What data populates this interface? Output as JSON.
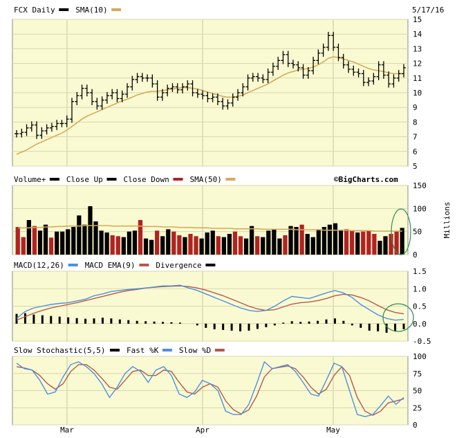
{
  "chart_data": [
    {
      "type": "ohlc",
      "title": "FCX Daily",
      "legend": [
        {
          "label": "FCX Daily",
          "color": "#000000"
        },
        {
          "label": "SMA(10)",
          "color": "#d4aa5a"
        }
      ],
      "date": "5/17/16",
      "ylim": [
        5,
        15
      ],
      "yticks": [
        "5",
        "6",
        "7",
        "8",
        "9",
        "10",
        "11",
        "12",
        "13",
        "14",
        "15"
      ],
      "xticks": [
        "Mar",
        "Apr",
        "May"
      ],
      "closes": [
        7.2,
        7.3,
        7.6,
        7.8,
        7.1,
        7.4,
        7.6,
        7.7,
        7.9,
        7.9,
        8.2,
        9.4,
        9.8,
        10.3,
        10.0,
        9.4,
        9.1,
        9.5,
        9.8,
        10.0,
        9.6,
        9.9,
        10.4,
        10.9,
        11.1,
        11.0,
        11.0,
        10.6,
        9.7,
        10.0,
        10.3,
        10.4,
        10.2,
        10.4,
        10.6,
        10.0,
        9.9,
        9.8,
        9.6,
        9.7,
        9.4,
        9.1,
        9.3,
        9.7,
        10.0,
        10.4,
        11.0,
        11.1,
        11.0,
        10.9,
        11.4,
        11.8,
        12.2,
        12.6,
        12.0,
        11.9,
        11.7,
        11.2,
        11.5,
        12.2,
        12.7,
        13.1,
        13.9,
        13.1,
        12.4,
        11.9,
        11.6,
        11.4,
        11.3,
        10.7,
        10.8,
        11.1,
        11.9,
        11.2,
        10.6,
        11.0,
        11.3,
        11.7
      ],
      "sma10": [
        5.8,
        5.95,
        6.1,
        6.3,
        6.5,
        6.65,
        6.8,
        6.95,
        7.1,
        7.25,
        7.45,
        7.7,
        7.95,
        8.2,
        8.4,
        8.55,
        8.7,
        8.85,
        9.0,
        9.15,
        9.3,
        9.45,
        9.55,
        9.7,
        9.85,
        9.95,
        10.05,
        10.1,
        10.1,
        10.15,
        10.2,
        10.25,
        10.3,
        10.35,
        10.35,
        10.3,
        10.25,
        10.15,
        10.05,
        9.95,
        9.85,
        9.75,
        9.7,
        9.7,
        9.75,
        9.85,
        10.0,
        10.15,
        10.3,
        10.45,
        10.6,
        10.8,
        11.0,
        11.2,
        11.35,
        11.45,
        11.55,
        11.6,
        11.65,
        11.75,
        11.9,
        12.1,
        12.35,
        12.45,
        12.4,
        12.3,
        12.2,
        12.1,
        11.95,
        11.8,
        11.65,
        11.55,
        11.5,
        11.45,
        11.35,
        11.3,
        11.3,
        11.3
      ]
    },
    {
      "type": "bar",
      "title": "Volume+",
      "legend": [
        {
          "label": "Volume+",
          "color": "#000000"
        },
        {
          "label": "Close Up",
          "color": "#000000"
        },
        {
          "label": "Close Down",
          "color": "#b22222"
        },
        {
          "label": "SMA(50)",
          "color": "#d4aa5a"
        }
      ],
      "source": "©BigCharts.com",
      "ylabel": "Millions",
      "ylim": [
        0,
        150
      ],
      "yticks": [
        "0",
        "50",
        "100",
        "150"
      ],
      "values": [
        60,
        38,
        75,
        62,
        52,
        65,
        37,
        50,
        50,
        55,
        60,
        85,
        65,
        105,
        72,
        52,
        48,
        42,
        40,
        38,
        50,
        52,
        75,
        35,
        32,
        52,
        40,
        55,
        50,
        42,
        38,
        45,
        40,
        35,
        48,
        52,
        40,
        38,
        45,
        50,
        40,
        35,
        62,
        40,
        38,
        52,
        55,
        35,
        42,
        62,
        60,
        65,
        45,
        38,
        55,
        60,
        65,
        68,
        52,
        55,
        52,
        48,
        50,
        52,
        45,
        30,
        40,
        45,
        50,
        58
      ],
      "up": [
        false,
        false,
        true,
        false,
        true,
        true,
        false,
        true,
        true,
        true,
        true,
        true,
        true,
        true,
        true,
        true,
        true,
        false,
        false,
        true,
        true,
        true,
        false,
        true,
        true,
        false,
        true,
        true,
        false,
        false,
        true,
        false,
        false,
        true,
        true,
        true,
        false,
        true,
        true,
        false,
        false,
        true,
        true,
        false,
        true,
        true,
        true,
        true,
        false,
        true,
        true,
        false,
        true,
        true,
        true,
        true,
        true,
        true,
        true,
        false,
        false,
        true,
        false,
        false,
        false,
        true,
        true,
        false,
        false,
        true
      ],
      "sma50": [
        58,
        58,
        58,
        59,
        59,
        60,
        60,
        61,
        61,
        62,
        62,
        62,
        63,
        63,
        63,
        63,
        63,
        62,
        62,
        62,
        62,
        62,
        62,
        61,
        61,
        61,
        60,
        60,
        60,
        59,
        59,
        59,
        58,
        58,
        58,
        57,
        57,
        57,
        57,
        56,
        56,
        56,
        56,
        56,
        55,
        55,
        55,
        55,
        55,
        55,
        54,
        54,
        54,
        54,
        54,
        53,
        53,
        53,
        53,
        53,
        52,
        52,
        52,
        52,
        51,
        51,
        51,
        51,
        51,
        51
      ]
    },
    {
      "type": "line",
      "title": "MACD(12,26)",
      "legend": [
        {
          "label": "MACD(12,26)",
          "color": "#4a90e2"
        },
        {
          "label": "MACD EMA(9)",
          "color": "#b5584a"
        },
        {
          "label": "Divergence",
          "color": "#000000"
        }
      ],
      "ylim": [
        -0.5,
        1.5
      ],
      "yticks": [
        "-0.5",
        "0.0",
        "0.5",
        "1.0",
        "1.5"
      ],
      "macd": [
        0.15,
        0.35,
        0.45,
        0.5,
        0.55,
        0.58,
        0.6,
        0.65,
        0.7,
        0.8,
        0.85,
        0.92,
        0.95,
        0.98,
        1.0,
        1.02,
        1.05,
        1.08,
        1.08,
        1.1,
        1.02,
        0.95,
        0.85,
        0.75,
        0.65,
        0.55,
        0.45,
        0.38,
        0.35,
        0.38,
        0.5,
        0.65,
        0.78,
        0.75,
        0.72,
        0.8,
        0.88,
        0.95,
        0.88,
        0.75,
        0.55,
        0.4,
        0.25,
        0.15,
        0.1,
        0.12
      ],
      "signal": [
        0.1,
        0.2,
        0.3,
        0.38,
        0.45,
        0.5,
        0.55,
        0.6,
        0.66,
        0.72,
        0.78,
        0.84,
        0.9,
        0.95,
        0.98,
        1.02,
        1.04,
        1.06,
        1.07,
        1.08,
        1.06,
        1.02,
        0.96,
        0.88,
        0.8,
        0.7,
        0.6,
        0.5,
        0.42,
        0.38,
        0.4,
        0.48,
        0.56,
        0.6,
        0.62,
        0.66,
        0.72,
        0.8,
        0.84,
        0.82,
        0.75,
        0.65,
        0.52,
        0.4,
        0.32,
        0.28
      ],
      "divergence": [
        0.28,
        0.3,
        0.26,
        0.24,
        0.22,
        0.2,
        0.18,
        0.16,
        0.14,
        0.15,
        0.17,
        0.15,
        0.12,
        0.1,
        0.08,
        0.07,
        0.06,
        0.05,
        0.04,
        0.03,
        0.0,
        -0.05,
        -0.12,
        -0.16,
        -0.18,
        -0.2,
        -0.22,
        -0.2,
        -0.15,
        -0.1,
        -0.05,
        0.03,
        0.07,
        0.05,
        0.06,
        0.08,
        0.12,
        0.15,
        0.08,
        -0.05,
        -0.12,
        -0.2,
        -0.22,
        -0.26,
        -0.22,
        -0.16
      ]
    },
    {
      "type": "line",
      "title": "Slow Stochastic(5,5)",
      "legend": [
        {
          "label": "Slow Stochastic(5,5)",
          "color": "#000000"
        },
        {
          "label": "Fast %K",
          "color": "#4a90e2"
        },
        {
          "label": "Slow %D",
          "color": "#b5584a"
        }
      ],
      "ylim": [
        0,
        100
      ],
      "yticks": [
        "0",
        "25",
        "50",
        "75",
        "100"
      ],
      "fastK": [
        90,
        82,
        80,
        65,
        45,
        48,
        70,
        88,
        92,
        85,
        75,
        60,
        40,
        55,
        75,
        85,
        78,
        62,
        80,
        85,
        72,
        45,
        40,
        48,
        65,
        60,
        50,
        20,
        15,
        15,
        30,
        60,
        92,
        82,
        85,
        88,
        78,
        62,
        45,
        42,
        65,
        90,
        85,
        50,
        15,
        12,
        15,
        28,
        42,
        30,
        40
      ],
      "slowD": [
        85,
        83,
        80,
        72,
        60,
        52,
        60,
        78,
        88,
        88,
        80,
        68,
        55,
        52,
        65,
        78,
        80,
        72,
        72,
        80,
        78,
        62,
        48,
        45,
        55,
        60,
        55,
        35,
        22,
        16,
        22,
        42,
        70,
        82,
        84,
        86,
        82,
        70,
        55,
        45,
        52,
        72,
        85,
        72,
        40,
        20,
        14,
        20,
        32,
        35,
        38
      ]
    }
  ]
}
